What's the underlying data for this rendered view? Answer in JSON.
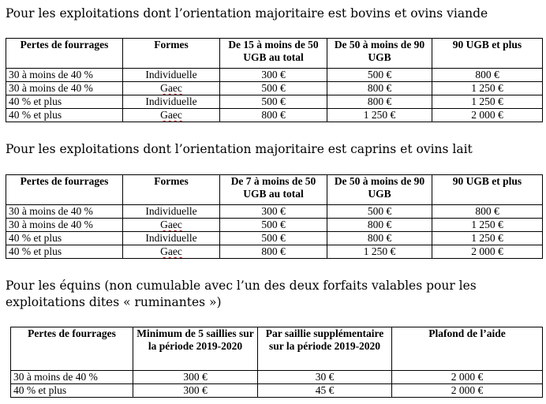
{
  "section1": {
    "heading": "Pour les exploitations dont l’orientation majoritaire est bovins et ovins viande",
    "headers": [
      "Pertes de fourrages",
      "Formes",
      "De 15 à moins de 50 UGB au total",
      "De 50 à moins de 90 UGB",
      "90 UGB et plus"
    ],
    "rows": [
      [
        "30 à moins de 40 %",
        "Individuelle",
        "300 €",
        "500 €",
        "800 €"
      ],
      [
        "30 à moins de 40 %",
        "Gaec",
        "500 €",
        "800 €",
        "1 250 €"
      ],
      [
        "40 % et plus",
        "Individuelle",
        "500 €",
        "800 €",
        "1 250 €"
      ],
      [
        "40 % et plus",
        "Gaec",
        "800 €",
        "1 250 €",
        "2 000 €"
      ]
    ]
  },
  "section2": {
    "heading": "Pour les exploitations dont l’orientation majoritaire est caprins et ovins lait",
    "headers": [
      "Pertes de fourrages",
      "Formes",
      "De 7 à moins de 50 UGB au total",
      "De 50 à moins de 90 UGB",
      "90 UGB et plus"
    ],
    "rows": [
      [
        "30 à moins de 40 %",
        "Individuelle",
        "300 €",
        "500 €",
        "800 €"
      ],
      [
        "30 à moins de 40 %",
        "Gaec",
        "500 €",
        "800 €",
        "1 250 €"
      ],
      [
        "40 % et plus",
        "Individuelle",
        "500 €",
        "800 €",
        "1 250 €"
      ],
      [
        "40 % et plus",
        "Gaec",
        "800 €",
        "1 250 €",
        "2 000 €"
      ]
    ]
  },
  "section3": {
    "heading": "Pour les équins (non cumulable avec l’un des deux forfaits valables pour les exploitations dites « ruminantes »)",
    "headers": [
      "Pertes de fourrages",
      "Minimum de 5 saillies sur la période 2019-2020",
      "Par saillie supplémentaire sur la période 2019-2020",
      "Plafond de l’aide"
    ],
    "rows": [
      [
        "30 à moins de 40 %",
        "300 €",
        "30 €",
        "2 000 €"
      ],
      [
        "40 % et plus",
        "300 €",
        "45 €",
        "2 000 €"
      ]
    ]
  }
}
